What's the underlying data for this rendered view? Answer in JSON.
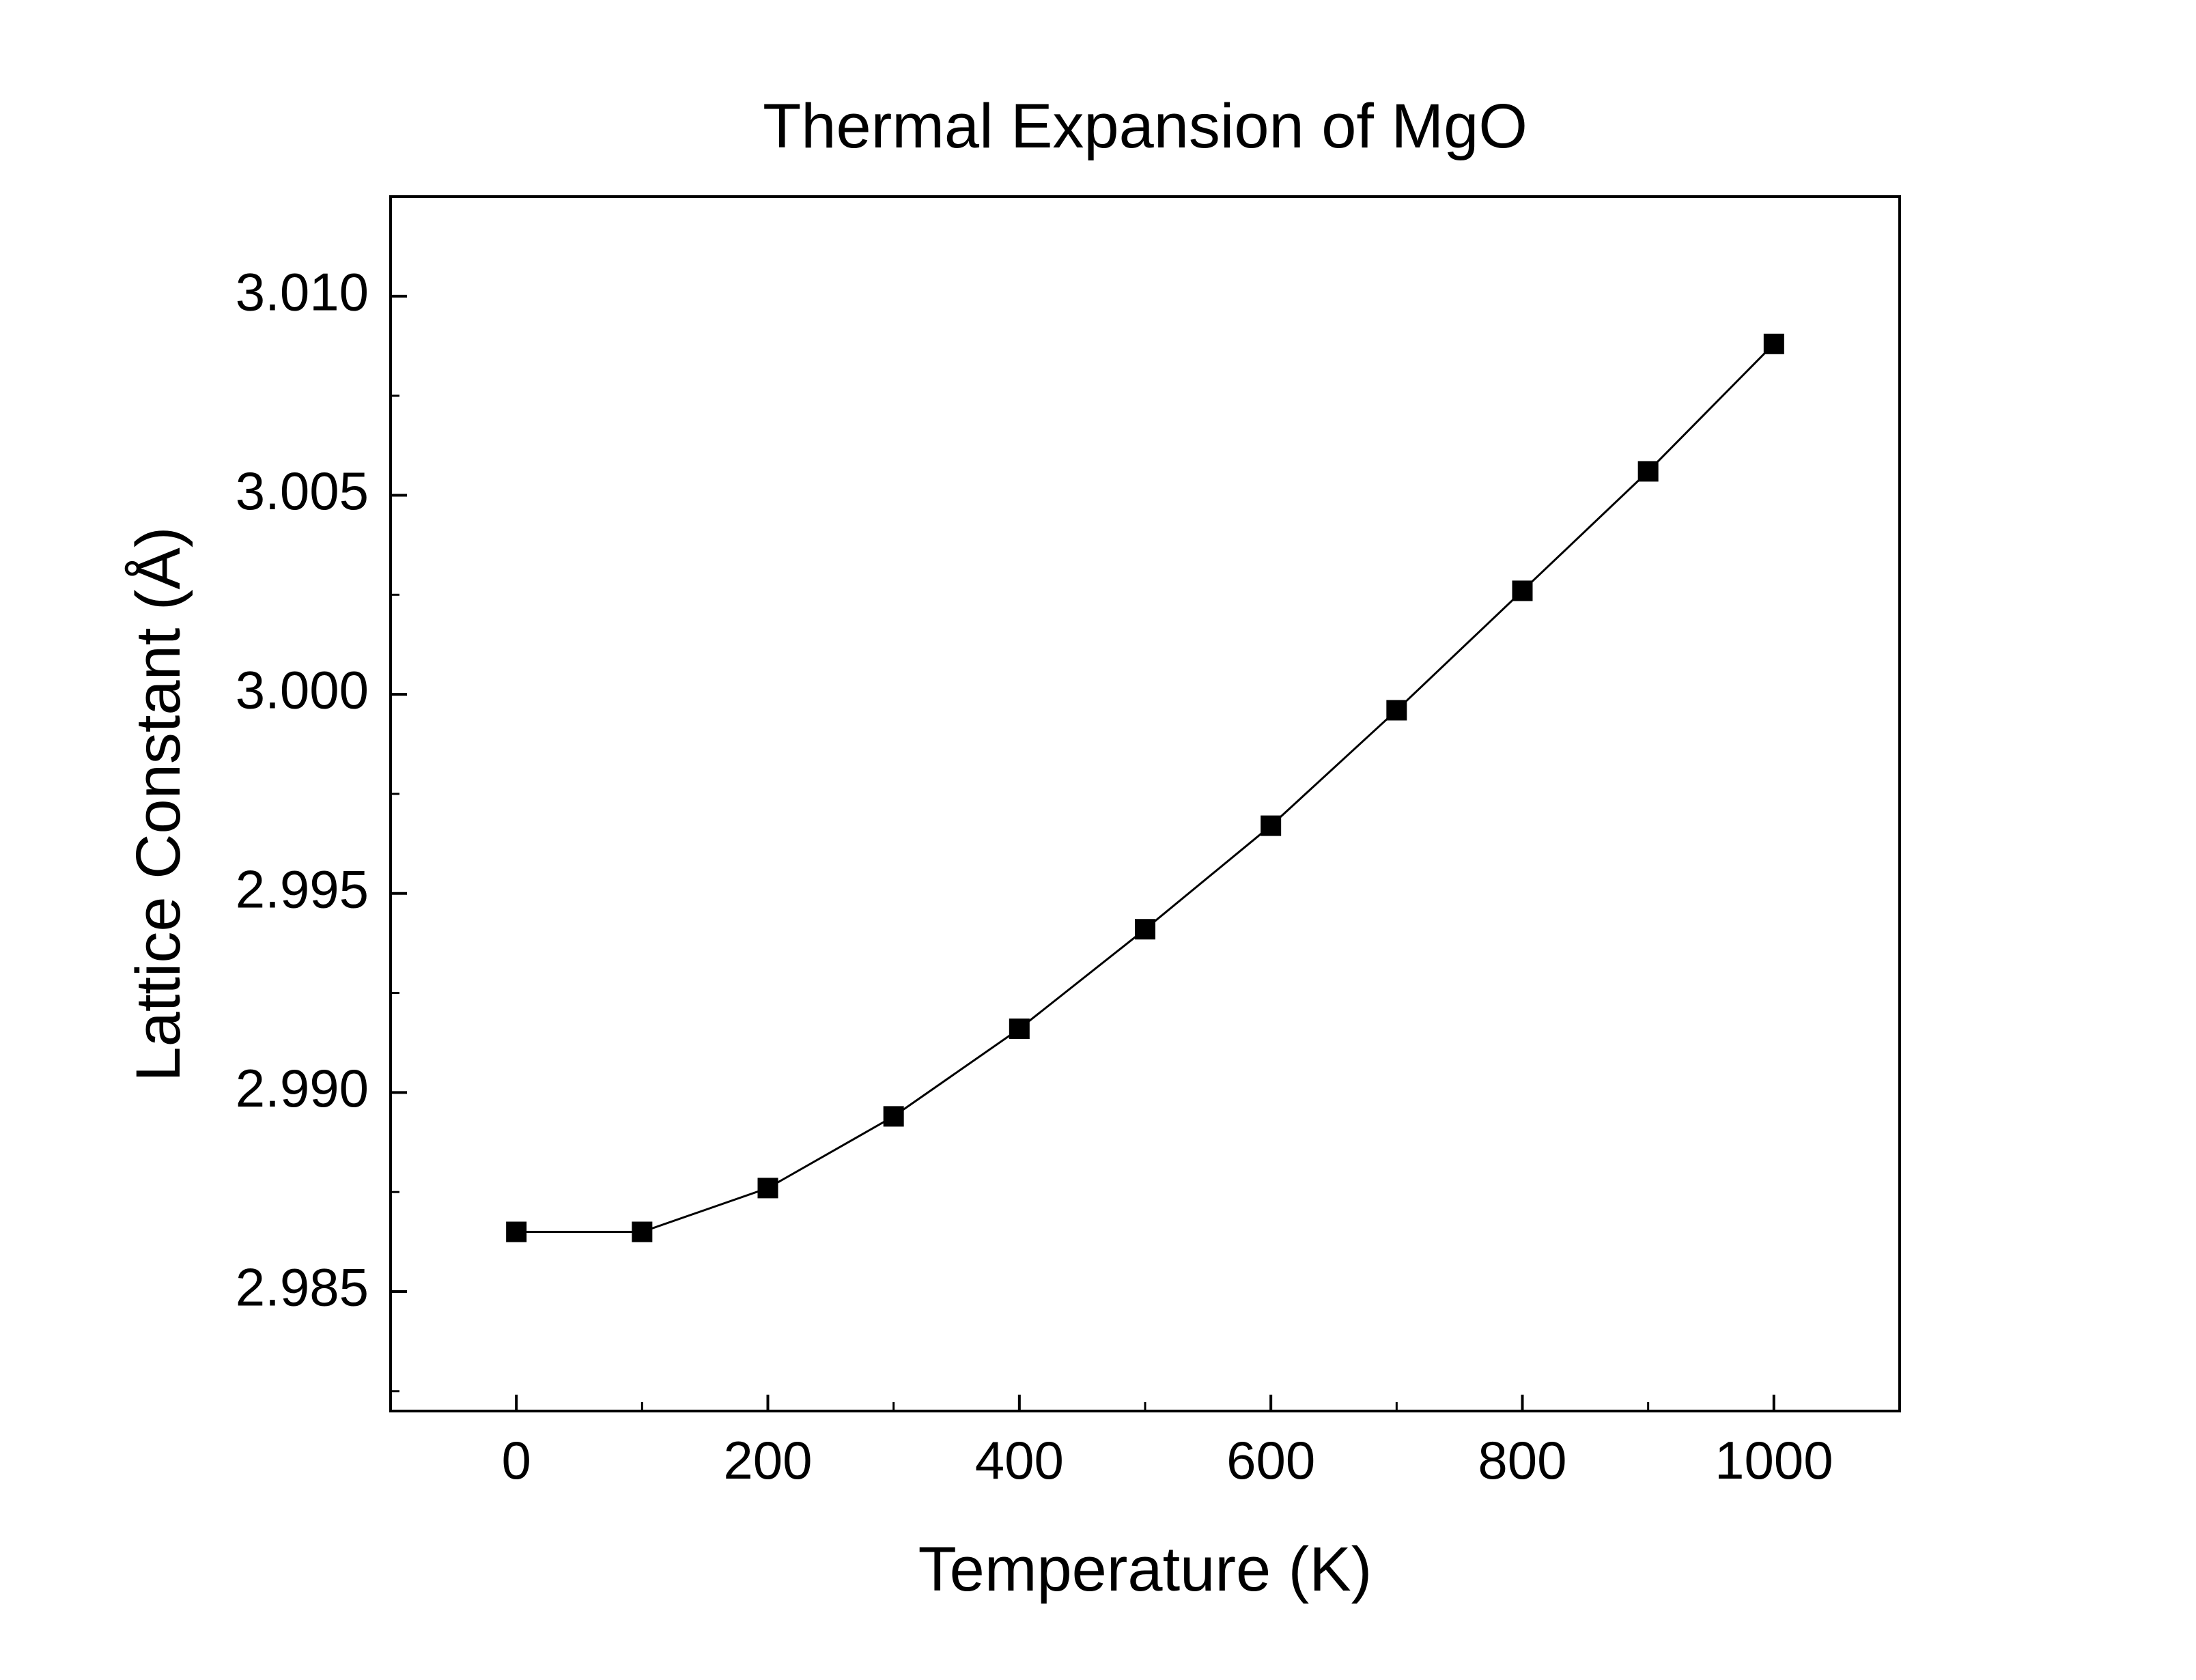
{
  "chart_data": {
    "type": "line",
    "title": "Thermal Expansion of MgO",
    "xlabel": "Temperature (K)",
    "ylabel": "Lattice Constant (Å)",
    "x": [
      0,
      100,
      200,
      300,
      400,
      500,
      600,
      700,
      800,
      900,
      1000
    ],
    "y": [
      2.9865,
      2.9865,
      2.9876,
      2.9894,
      2.9916,
      2.9941,
      2.9967,
      2.9996,
      3.0026,
      3.0056,
      3.0088
    ],
    "xlim": [
      -100,
      1100
    ],
    "ylim": [
      2.982,
      3.0125
    ],
    "x_ticks": [
      0,
      200,
      400,
      600,
      800,
      1000
    ],
    "x_tick_labels": [
      "0",
      "200",
      "400",
      "600",
      "800",
      "1000"
    ],
    "x_minor_step": 100,
    "y_ticks": [
      2.985,
      2.99,
      2.995,
      3.0,
      3.005,
      3.01
    ],
    "y_tick_labels": [
      "2.985",
      "2.990",
      "2.995",
      "3.000",
      "3.005",
      "3.010"
    ],
    "y_minor_step": 0.0025,
    "marker": "square",
    "marker_size_px": 30,
    "line_color": "#000000",
    "marker_color": "#000000",
    "axis_color": "#000000",
    "background": "#ffffff",
    "grid": "off",
    "legend": "none"
  }
}
